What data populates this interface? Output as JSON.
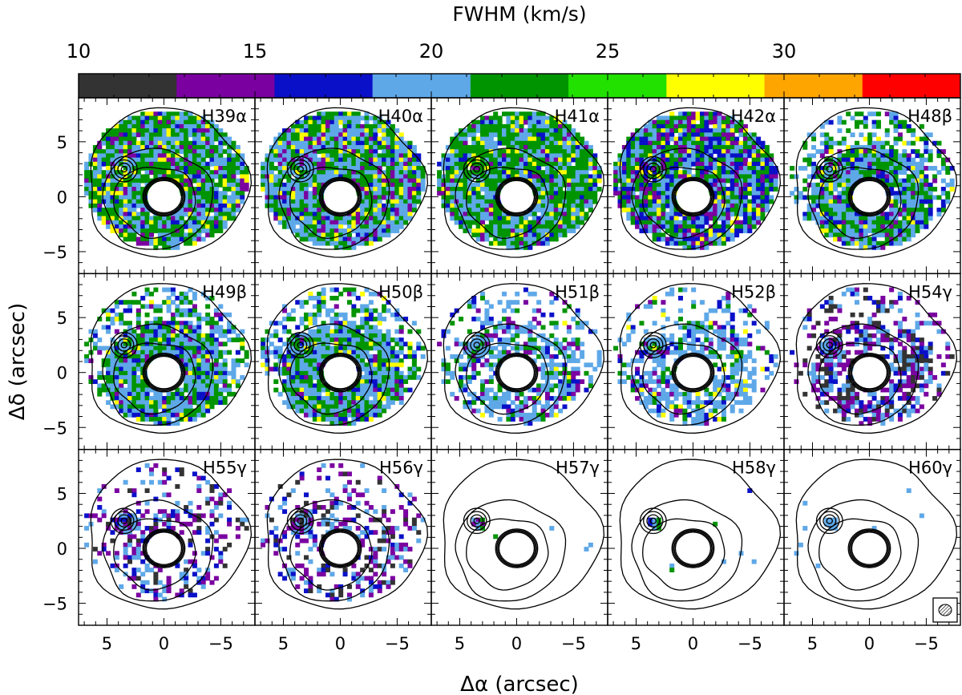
{
  "chart_data": {
    "type": "heatmap",
    "layout": {
      "rows": 3,
      "cols": 5
    },
    "colorbar": {
      "label": "FWHM (km/s)",
      "tick_labels": [
        "10",
        "15",
        "20",
        "25",
        "30"
      ],
      "tick_values": [
        10,
        15,
        20,
        25,
        30
      ],
      "range": [
        10,
        35
      ],
      "bins": [
        {
          "from": 10.0,
          "to": 15.5,
          "color": "#333333"
        },
        {
          "from": 15.5,
          "to": 20.5,
          "color": "#7a00a0"
        },
        {
          "from": 20.5,
          "to": 25.5,
          "color": "#0a10c8"
        },
        {
          "from": 25.5,
          "to": 30.5,
          "color": "#5ea8e8"
        },
        {
          "from": 30.5,
          "to": 35.5,
          "color": "#009400"
        }
      ],
      "bins_note_upper": [
        {
          "from": 30.5,
          "to": 33.0,
          "color": "#009400"
        }
      ],
      "colors_in_order": [
        "#333333",
        "#7a00a0",
        "#0a10c8",
        "#5ea8e8",
        "#009400",
        "#22e000",
        "#ffff00",
        "#ffa500",
        "#ff0000"
      ]
    },
    "xlabel": "Δα (arcsec)",
    "ylabel": "Δδ (arcsec)",
    "xlim": [
      7.5,
      -8
    ],
    "ylim": [
      -7,
      9
    ],
    "x_tick_labels": [
      "5",
      "0",
      "−5"
    ],
    "x_tick_values": [
      5,
      0,
      -5
    ],
    "y_tick_labels": [
      "5",
      "0",
      "−5"
    ],
    "y_tick_values": [
      5,
      0,
      -5
    ],
    "panels": [
      {
        "label": "H39α",
        "coverage": "full",
        "mix": {
          "green": 0.4,
          "lightblue": 0.35,
          "yellow": 0.1,
          "purple": 0.1,
          "blue": 0.05
        }
      },
      {
        "label": "H40α",
        "coverage": "full",
        "mix": {
          "green": 0.3,
          "lightblue": 0.45,
          "yellow": 0.08,
          "purple": 0.12,
          "blue": 0.05
        }
      },
      {
        "label": "H41α",
        "coverage": "full",
        "mix": {
          "green": 0.5,
          "lightblue": 0.3,
          "yellow": 0.1,
          "purple": 0.05,
          "blue": 0.05
        }
      },
      {
        "label": "H42α",
        "coverage": "full",
        "mix": {
          "green": 0.3,
          "lightblue": 0.25,
          "yellow": 0.08,
          "purple": 0.17,
          "blue": 0.2
        }
      },
      {
        "label": "H48β",
        "coverage": "partial",
        "mix": {
          "green": 0.35,
          "lightblue": 0.4,
          "yellow": 0.05,
          "purple": 0.1,
          "blue": 0.1
        }
      },
      {
        "label": "H49β",
        "coverage": "partial",
        "mix": {
          "green": 0.35,
          "lightblue": 0.45,
          "yellow": 0.05,
          "purple": 0.05,
          "blue": 0.1
        }
      },
      {
        "label": "H50β",
        "coverage": "partial",
        "mix": {
          "green": 0.35,
          "lightblue": 0.45,
          "yellow": 0.05,
          "purple": 0.05,
          "blue": 0.1
        }
      },
      {
        "label": "H51β",
        "coverage": "sparse",
        "mix": {
          "green": 0.2,
          "lightblue": 0.55,
          "yellow": 0.02,
          "purple": 0.13,
          "blue": 0.1
        }
      },
      {
        "label": "H52β",
        "coverage": "sparse",
        "mix": {
          "green": 0.15,
          "lightblue": 0.6,
          "yellow": 0.05,
          "purple": 0.1,
          "blue": 0.1
        }
      },
      {
        "label": "H54γ",
        "coverage": "sparse",
        "mix": {
          "lightblue": 0.3,
          "purple": 0.3,
          "blue": 0.15,
          "black": 0.25
        }
      },
      {
        "label": "H55γ",
        "coverage": "very-sparse",
        "mix": {
          "lightblue": 0.3,
          "purple": 0.35,
          "blue": 0.2,
          "black": 0.15
        }
      },
      {
        "label": "H56γ",
        "coverage": "very-sparse",
        "mix": {
          "lightblue": 0.3,
          "purple": 0.35,
          "blue": 0.15,
          "black": 0.2
        }
      },
      {
        "label": "H57γ",
        "coverage": "minimal",
        "mix": {
          "lightblue": 0.6,
          "green": 0.2,
          "purple": 0.2
        }
      },
      {
        "label": "H58γ",
        "coverage": "minimal",
        "mix": {
          "lightblue": 0.5,
          "blue": 0.3,
          "green": 0.2
        }
      },
      {
        "label": "H60γ",
        "coverage": "minimal",
        "mix": {
          "lightblue": 1.0
        }
      }
    ],
    "grid": false,
    "beam": "hatched ellipse in bottom-right of last panel"
  }
}
